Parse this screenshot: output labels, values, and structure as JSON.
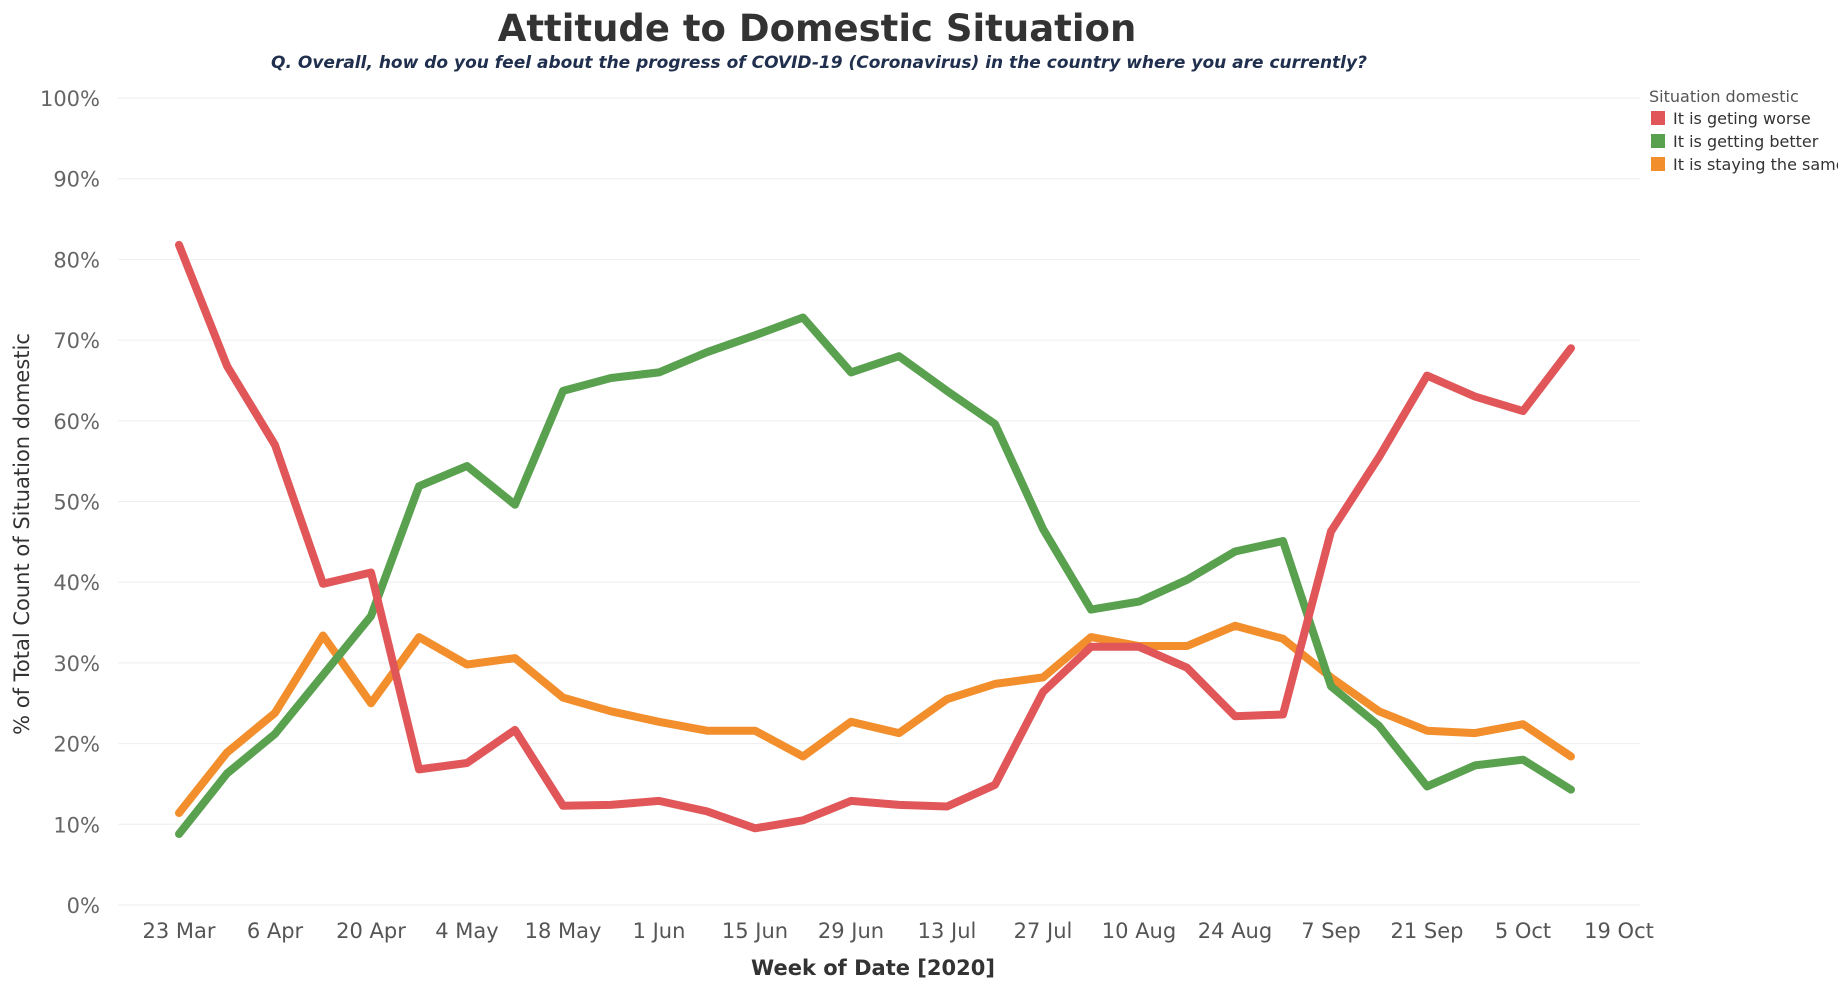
{
  "chart_data": {
    "type": "line",
    "title": "Attitude to Domestic Situation",
    "subtitle": "Q. Overall, how do you feel about the progress of COVID-19 (Coronavirus) in the country where you are currently?",
    "xlabel": "Week of Date [2020]",
    "ylabel": "% of Total Count of Situation domestic",
    "ylim": [
      0,
      100
    ],
    "y_ticks": [
      "0%",
      "10%",
      "20%",
      "30%",
      "40%",
      "50%",
      "60%",
      "70%",
      "80%",
      "90%",
      "100%"
    ],
    "y_tick_values": [
      0,
      10,
      20,
      30,
      40,
      50,
      60,
      70,
      80,
      90,
      100
    ],
    "x_ticks": [
      "23 Mar",
      "6 Apr",
      "20 Apr",
      "4 May",
      "18 May",
      "1 Jun",
      "15 Jun",
      "29 Jun",
      "13 Jul",
      "27 Jul",
      "10 Aug",
      "24 Aug",
      "7 Sep",
      "21 Sep",
      "5 Oct",
      "19 Oct"
    ],
    "x": [
      "23 Mar",
      "30 Mar",
      "6 Apr",
      "13 Apr",
      "20 Apr",
      "27 Apr",
      "4 May",
      "11 May",
      "18 May",
      "25 May",
      "1 Jun",
      "8 Jun",
      "15 Jun",
      "22 Jun",
      "29 Jun",
      "6 Jul",
      "13 Jul",
      "20 Jul",
      "27 Jul",
      "3 Aug",
      "10 Aug",
      "17 Aug",
      "24 Aug",
      "31 Aug",
      "7 Sep",
      "14 Sep",
      "21 Sep",
      "28 Sep",
      "5 Oct",
      "12 Oct"
    ],
    "legend_title": "Situation domestic",
    "legend_position": "top-right",
    "grid": true,
    "series": [
      {
        "name": "It is geting worse",
        "color": "#e15759",
        "values": [
          81.8,
          66.8,
          57.0,
          39.8,
          41.2,
          16.8,
          17.6,
          21.7,
          12.3,
          12.4,
          12.9,
          11.6,
          9.5,
          10.5,
          12.9,
          12.4,
          12.2,
          14.9,
          26.4,
          32.0,
          32.0,
          29.4,
          23.4,
          23.6,
          46.3,
          55.5,
          65.6,
          63.0,
          61.2,
          69.0
        ]
      },
      {
        "name": "It is getting better",
        "color": "#59a14f",
        "values": [
          8.8,
          16.3,
          21.2,
          28.5,
          35.8,
          51.9,
          54.4,
          49.6,
          63.7,
          65.3,
          66.0,
          68.5,
          70.6,
          72.8,
          66.0,
          68.0,
          63.7,
          59.6,
          46.6,
          36.6,
          37.6,
          40.3,
          43.8,
          45.1,
          27.1,
          22.2,
          14.7,
          17.3,
          18.0,
          14.3
        ]
      },
      {
        "name": "It is staying the same",
        "color": "#f28e2b",
        "values": [
          11.4,
          18.9,
          23.8,
          33.4,
          25.0,
          33.2,
          29.8,
          30.6,
          25.7,
          24.0,
          22.7,
          21.6,
          21.6,
          18.4,
          22.7,
          21.3,
          25.5,
          27.4,
          28.2,
          33.2,
          32.1,
          32.1,
          34.6,
          33.0,
          28.2,
          24.0,
          21.6,
          21.3,
          22.4,
          18.4
        ]
      }
    ]
  }
}
